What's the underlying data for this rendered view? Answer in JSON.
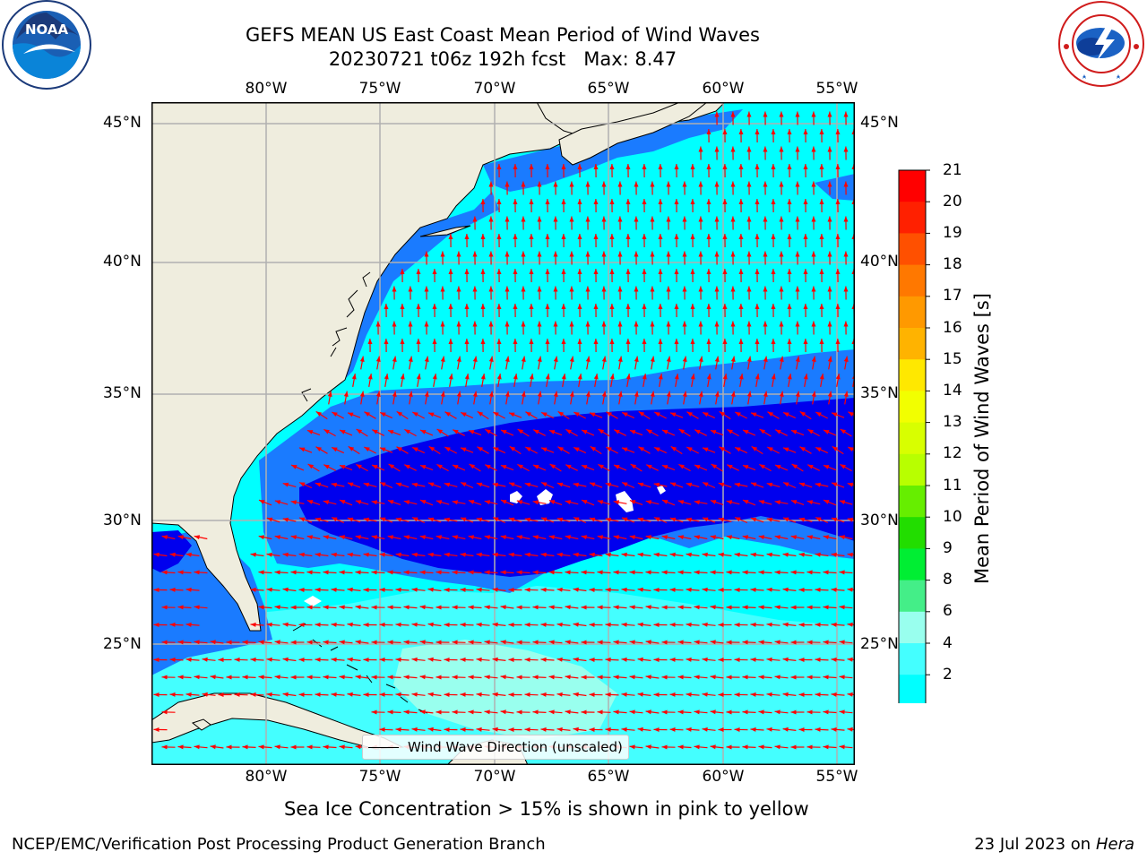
{
  "header": {
    "title_line1": "GEFS MEAN US East Coast Mean Period of Wind Waves",
    "title_line2": "20230721 t06z 192h fcst   Max: 8.47"
  },
  "logos": {
    "left": {
      "icon": "noaa-logo",
      "text": "NOAA",
      "ring_text": "NATIONAL OCEANIC AND ATMOSPHERIC ADMINISTRATION · U.S. DEPARTMENT OF COMMERCE"
    },
    "right": {
      "icon": "nws-logo",
      "ring_text": "NATIONAL WEATHER SERVICE"
    }
  },
  "map": {
    "lon_ticks": [
      "80°W",
      "75°W",
      "70°W",
      "65°W",
      "60°W",
      "55°W"
    ],
    "lat_ticks": [
      "45°N",
      "40°N",
      "35°N",
      "30°N",
      "25°N"
    ],
    "lon_range": [
      -85,
      -54.3
    ],
    "lat_range": [
      20.5,
      46.3
    ],
    "colors": {
      "land": "#efedde",
      "coast": "#000000",
      "grid": "#b0b0b0",
      "arrow": "#ff0000"
    },
    "legend": {
      "label": "Wind Wave Direction (unscaled)"
    }
  },
  "colorbar": {
    "title": "Mean Period of Wind Waves [s]",
    "ticks": [
      "21",
      "20",
      "19",
      "18",
      "17",
      "16",
      "15",
      "14",
      "13",
      "12",
      "11",
      "10",
      "9",
      "8",
      "6",
      "4",
      "2"
    ],
    "colors": [
      "#ff0000",
      "#ff2000",
      "#ff5000",
      "#ff7800",
      "#ff9900",
      "#ffb300",
      "#ffe800",
      "#f2ff00",
      "#d8ff00",
      "#b8ff00",
      "#66ee00",
      "#22dd00",
      "#00ee33",
      "#44ee88",
      "#99ffee",
      "#44ffff",
      "#00ffff",
      "#1a7bff"
    ],
    "extend_color": "#0000ee"
  },
  "footer": {
    "subtitle": "Sea Ice Concentration > 15% is shown in pink to yellow",
    "left": "NCEP/EMC/Verification Post Processing Product Generation Branch",
    "right_prefix": "23 Jul 2023 on ",
    "right_host": "Hera"
  }
}
